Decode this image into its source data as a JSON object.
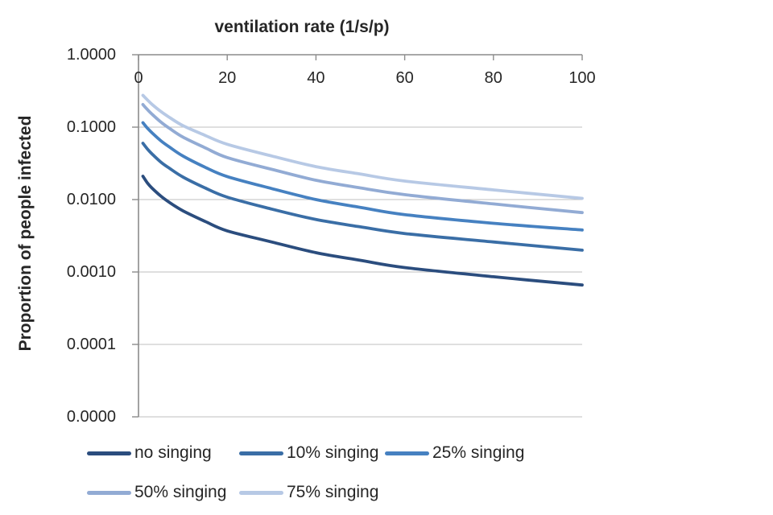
{
  "chart_data": {
    "type": "line",
    "title": "ventilation rate (1/s/p)",
    "xlabel": "ventilation rate (1/s/p)",
    "ylabel": "Proportion of people infected",
    "x_axis": {
      "position": "top",
      "min": 0,
      "max": 100,
      "tick_labels": [
        "0",
        "20",
        "40",
        "60",
        "80",
        "100"
      ],
      "tick_values": [
        0,
        20,
        40,
        60,
        80,
        100
      ]
    },
    "y_axis": {
      "scale": "log",
      "tick_labels": [
        "1.0000",
        "0.1000",
        "0.0100",
        "0.0010",
        "0.0001",
        "0.0000"
      ],
      "tick_values": [
        1,
        0.1,
        0.01,
        0.001,
        0.0001,
        1e-05
      ]
    },
    "grid": "horizontal-major",
    "legend_position": "bottom",
    "colors": {
      "gridline": "#BFBFBF",
      "axis": "#8C8C8C",
      "text": "#262626",
      "background": "#FFFFFF"
    },
    "series": [
      {
        "name": "no singing",
        "color": "#2B4D7E",
        "points": [
          [
            1,
            0.021
          ],
          [
            2,
            0.017
          ],
          [
            3,
            0.0145
          ],
          [
            5,
            0.0112
          ],
          [
            7,
            0.0091
          ],
          [
            10,
            0.007
          ],
          [
            15,
            0.005
          ],
          [
            20,
            0.0037
          ],
          [
            30,
            0.0026
          ],
          [
            40,
            0.00185
          ],
          [
            50,
            0.00145
          ],
          [
            60,
            0.00115
          ],
          [
            80,
            0.00086
          ],
          [
            100,
            0.00066
          ]
        ]
      },
      {
        "name": "10% singing",
        "color": "#3A6EA6",
        "points": [
          [
            1,
            0.06
          ],
          [
            2,
            0.05
          ],
          [
            3,
            0.043
          ],
          [
            5,
            0.033
          ],
          [
            7,
            0.027
          ],
          [
            10,
            0.0205
          ],
          [
            15,
            0.0145
          ],
          [
            20,
            0.0108
          ],
          [
            30,
            0.0074
          ],
          [
            40,
            0.0053
          ],
          [
            50,
            0.0042
          ],
          [
            60,
            0.0034
          ],
          [
            80,
            0.0026
          ],
          [
            100,
            0.002
          ]
        ]
      },
      {
        "name": "25% singing",
        "color": "#4681C1",
        "points": [
          [
            1,
            0.115
          ],
          [
            2,
            0.097
          ],
          [
            3,
            0.084
          ],
          [
            5,
            0.065
          ],
          [
            7,
            0.053
          ],
          [
            10,
            0.04
          ],
          [
            15,
            0.028
          ],
          [
            20,
            0.0208
          ],
          [
            30,
            0.0142
          ],
          [
            40,
            0.01
          ],
          [
            50,
            0.0078
          ],
          [
            60,
            0.0062
          ],
          [
            80,
            0.0047
          ],
          [
            100,
            0.0038
          ]
        ]
      },
      {
        "name": "50% singing",
        "color": "#92ABD4",
        "points": [
          [
            1,
            0.205
          ],
          [
            2,
            0.175
          ],
          [
            3,
            0.152
          ],
          [
            5,
            0.118
          ],
          [
            7,
            0.096
          ],
          [
            10,
            0.073
          ],
          [
            15,
            0.052
          ],
          [
            20,
            0.038
          ],
          [
            30,
            0.0262
          ],
          [
            40,
            0.0185
          ],
          [
            50,
            0.0145
          ],
          [
            60,
            0.0117
          ],
          [
            80,
            0.0087
          ],
          [
            100,
            0.0066
          ]
        ]
      },
      {
        "name": "75% singing",
        "color": "#B7C9E5",
        "points": [
          [
            1,
            0.275
          ],
          [
            2,
            0.238
          ],
          [
            3,
            0.208
          ],
          [
            5,
            0.165
          ],
          [
            7,
            0.136
          ],
          [
            10,
            0.105
          ],
          [
            15,
            0.077
          ],
          [
            20,
            0.058
          ],
          [
            30,
            0.04
          ],
          [
            40,
            0.0285
          ],
          [
            50,
            0.0225
          ],
          [
            60,
            0.018
          ],
          [
            80,
            0.0136
          ],
          [
            100,
            0.0104
          ]
        ]
      }
    ]
  }
}
